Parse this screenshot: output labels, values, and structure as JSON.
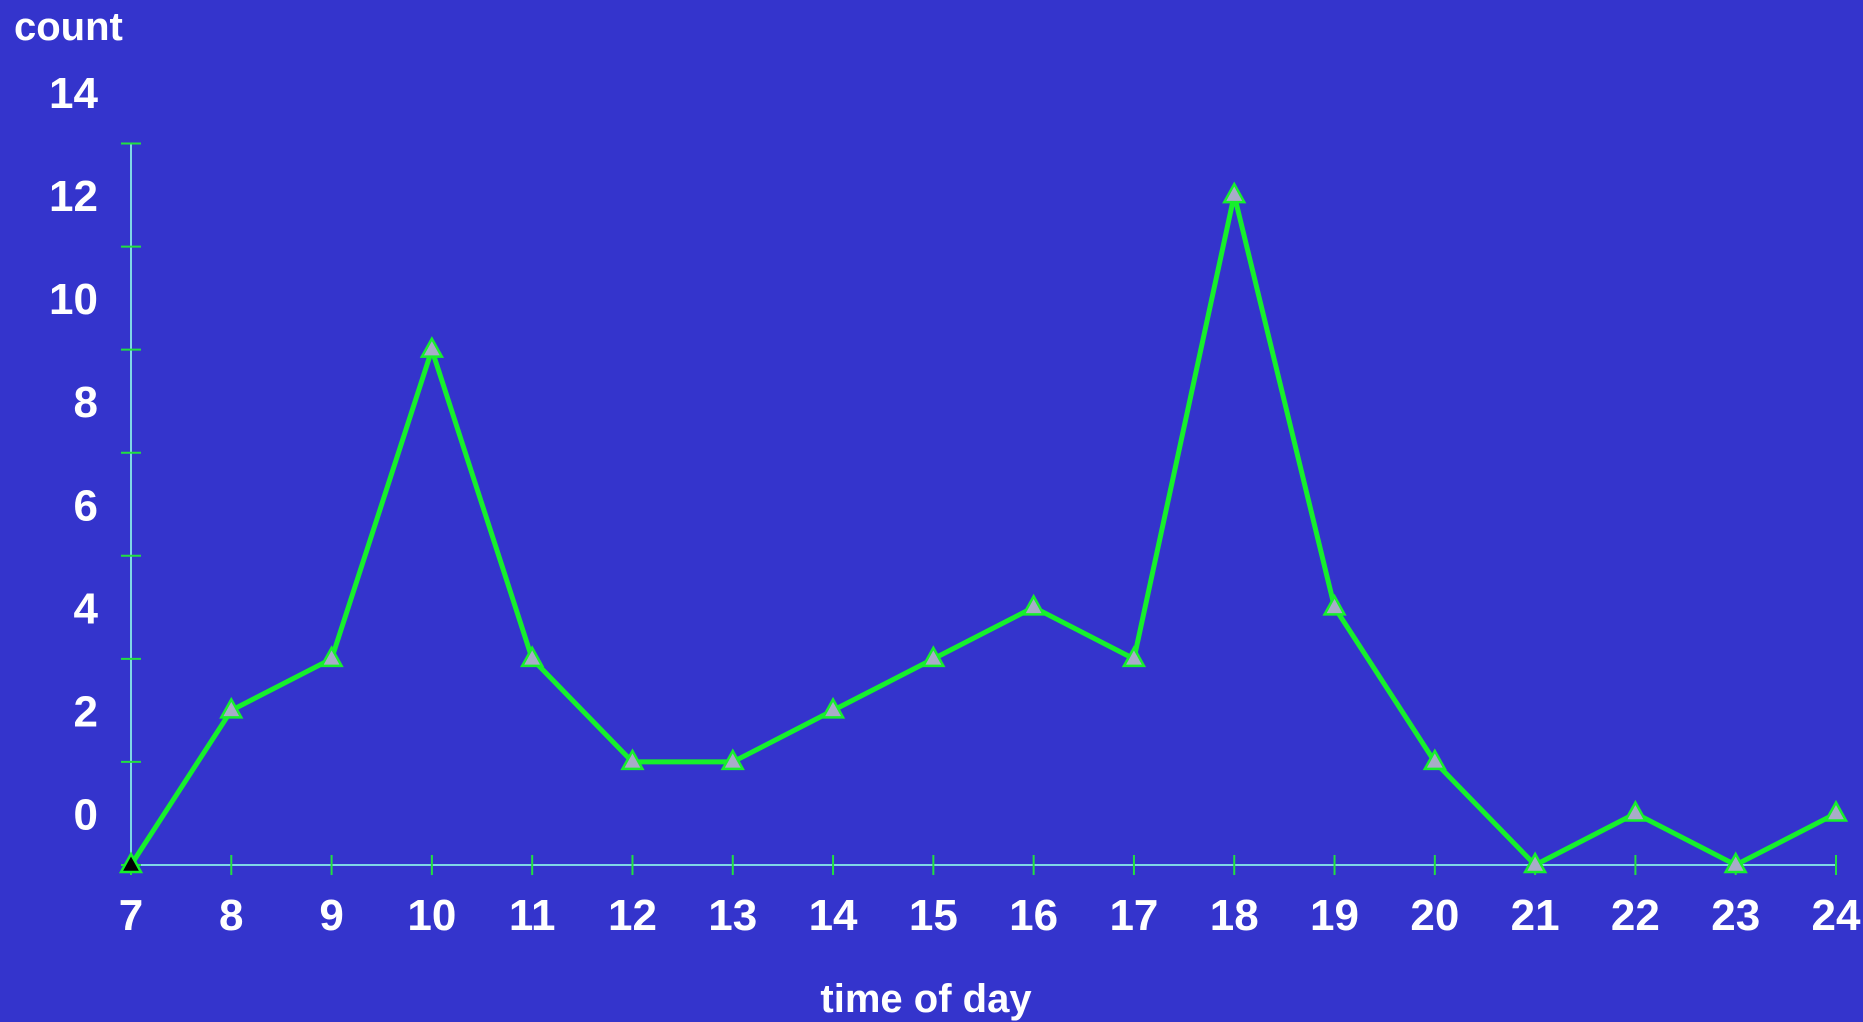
{
  "colors": {
    "background": "#3434CC",
    "axis": "#7FD6E6",
    "tick": "#22E040",
    "line": "#16F02C",
    "marker_fill": "#A8ACC8",
    "marker_stroke": "#16F02C",
    "first_marker_fill": "#000000",
    "text": "#FFFFFF"
  },
  "chart_data": {
    "type": "line",
    "title": "",
    "xlabel": "time of day",
    "ylabel": "count",
    "x": [
      7,
      8,
      9,
      10,
      11,
      12,
      13,
      14,
      15,
      16,
      17,
      18,
      19,
      20,
      21,
      22,
      23,
      24
    ],
    "series": [
      {
        "values": [
          -1,
          2,
          3,
          9,
          3,
          1,
          1,
          2,
          3,
          4,
          3,
          12,
          4,
          1,
          -1,
          0,
          -1,
          0
        ],
        "marker": "triangle"
      }
    ],
    "x_ticks": [
      "7",
      "8",
      "9",
      "10",
      "11",
      "12",
      "13",
      "14",
      "15",
      "16",
      "17",
      "18",
      "19",
      "20",
      "21",
      "22",
      "23",
      "24"
    ],
    "y_ticks": [
      "0",
      "2",
      "4",
      "6",
      "8",
      "10",
      "12",
      "14"
    ],
    "xlim": [
      7,
      24
    ],
    "ylim": [
      -1,
      14
    ],
    "grid": false,
    "legend": "none"
  }
}
